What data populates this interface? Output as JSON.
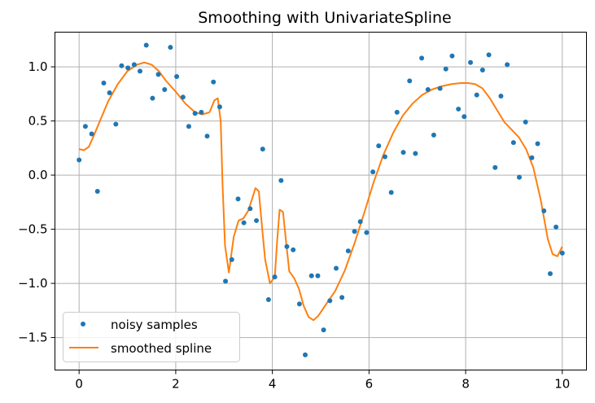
{
  "chart_data": {
    "type": "scatter",
    "title": "Smoothing with UnivariateSpline",
    "xlabel": "",
    "ylabel": "",
    "xlim": [
      -0.5,
      10.5
    ],
    "ylim": [
      -1.8,
      1.32
    ],
    "x_ticks": [
      0,
      2,
      4,
      6,
      8,
      10
    ],
    "x_tick_labels": [
      "0",
      "2",
      "4",
      "6",
      "8",
      "10"
    ],
    "y_ticks": [
      1.0,
      0.5,
      0.0,
      -0.5,
      -1.0,
      -1.5
    ],
    "y_tick_labels": [
      "1.0",
      "0.5",
      "0.0",
      "−0.5",
      "−1.0",
      "−1.5"
    ],
    "grid": true,
    "legend_position": "lower-left",
    "colors": {
      "samples": "#1f77b4",
      "spline": "#ff7f0e",
      "grid": "#b0b0b0"
    },
    "series": [
      {
        "name": "noisy samples",
        "type": "scatter",
        "x": [
          0.0,
          0.13,
          0.26,
          0.38,
          0.51,
          0.63,
          0.76,
          0.88,
          1.01,
          1.14,
          1.26,
          1.39,
          1.52,
          1.64,
          1.77,
          1.89,
          2.02,
          2.15,
          2.27,
          2.4,
          2.53,
          2.65,
          2.78,
          2.91,
          3.03,
          3.16,
          3.29,
          3.41,
          3.54,
          3.67,
          3.8,
          3.92,
          4.05,
          4.18,
          4.3,
          4.43,
          4.56,
          4.68,
          4.81,
          4.94,
          5.06,
          5.19,
          5.32,
          5.44,
          5.57,
          5.7,
          5.82,
          5.95,
          6.08,
          6.2,
          6.33,
          6.46,
          6.58,
          6.71,
          6.84,
          6.96,
          7.09,
          7.22,
          7.34,
          7.47,
          7.59,
          7.72,
          7.85,
          7.97,
          8.1,
          8.23,
          8.35,
          8.48,
          8.61,
          8.73,
          8.86,
          8.99,
          9.11,
          9.24,
          9.37,
          9.49,
          9.62,
          9.75,
          9.87,
          10.0
        ],
        "y": [
          0.14,
          0.45,
          0.38,
          -0.15,
          0.85,
          0.76,
          0.47,
          1.01,
          0.99,
          1.02,
          0.96,
          1.2,
          0.71,
          0.93,
          0.79,
          1.18,
          0.91,
          0.72,
          0.45,
          0.57,
          0.58,
          0.36,
          0.86,
          0.63,
          -0.98,
          -0.78,
          -0.22,
          -0.44,
          -0.31,
          -0.42,
          0.24,
          -1.15,
          -0.94,
          -0.05,
          -0.66,
          -0.69,
          -1.19,
          -1.66,
          -0.93,
          -0.93,
          -1.43,
          -1.16,
          -0.86,
          -1.13,
          -0.7,
          -0.52,
          -0.43,
          -0.53,
          0.03,
          0.27,
          0.17,
          -0.16,
          0.58,
          0.21,
          0.87,
          0.2,
          1.08,
          0.79,
          0.37,
          0.8,
          0.98,
          1.1,
          0.61,
          0.54,
          1.04,
          0.74,
          0.97,
          1.11,
          0.07,
          0.73,
          1.02,
          0.3,
          -0.02,
          0.49,
          0.16,
          0.29,
          -0.33,
          -0.91,
          -0.48,
          -0.72
        ]
      },
      {
        "name": "smoothed spline",
        "type": "line",
        "x": [
          0.0,
          0.1,
          0.2,
          0.3,
          0.45,
          0.6,
          0.8,
          1.0,
          1.2,
          1.35,
          1.5,
          1.65,
          1.8,
          2.0,
          2.2,
          2.4,
          2.55,
          2.7,
          2.8,
          2.87,
          2.93,
          2.97,
          3.02,
          3.1,
          3.2,
          3.3,
          3.4,
          3.5,
          3.58,
          3.65,
          3.72,
          3.78,
          3.85,
          3.95,
          4.05,
          4.1,
          4.15,
          4.22,
          4.28,
          4.35,
          4.45,
          4.55,
          4.65,
          4.75,
          4.85,
          4.95,
          5.1,
          5.3,
          5.5,
          5.7,
          5.9,
          6.1,
          6.3,
          6.5,
          6.7,
          6.9,
          7.1,
          7.3,
          7.5,
          7.7,
          7.9,
          8.05,
          8.2,
          8.35,
          8.5,
          8.65,
          8.8,
          8.95,
          9.1,
          9.25,
          9.4,
          9.55,
          9.7,
          9.8,
          9.9,
          10.0
        ],
        "y": [
          0.24,
          0.23,
          0.26,
          0.36,
          0.52,
          0.68,
          0.84,
          0.96,
          1.02,
          1.04,
          1.02,
          0.96,
          0.87,
          0.77,
          0.66,
          0.58,
          0.56,
          0.58,
          0.69,
          0.71,
          0.5,
          -0.1,
          -0.65,
          -0.9,
          -0.57,
          -0.42,
          -0.4,
          -0.33,
          -0.22,
          -0.12,
          -0.15,
          -0.45,
          -0.78,
          -1.0,
          -0.94,
          -0.6,
          -0.32,
          -0.34,
          -0.6,
          -0.89,
          -0.95,
          -1.05,
          -1.21,
          -1.31,
          -1.34,
          -1.3,
          -1.2,
          -1.07,
          -0.88,
          -0.63,
          -0.35,
          -0.06,
          0.19,
          0.39,
          0.55,
          0.66,
          0.74,
          0.79,
          0.82,
          0.84,
          0.85,
          0.85,
          0.84,
          0.8,
          0.71,
          0.6,
          0.49,
          0.42,
          0.35,
          0.24,
          0.07,
          -0.22,
          -0.59,
          -0.73,
          -0.75,
          -0.66
        ]
      }
    ]
  }
}
